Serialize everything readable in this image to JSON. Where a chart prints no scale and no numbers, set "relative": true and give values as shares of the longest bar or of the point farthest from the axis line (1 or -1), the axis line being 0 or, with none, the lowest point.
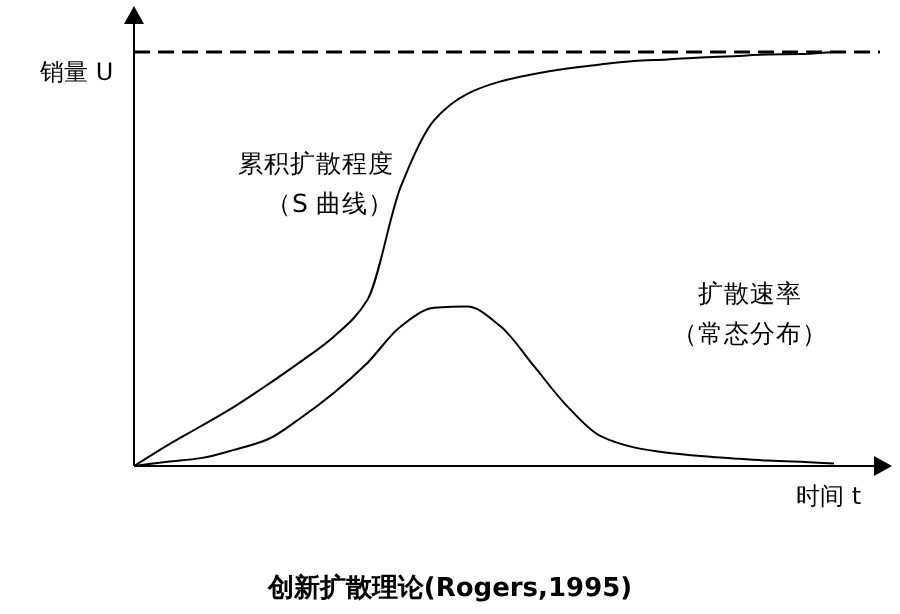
{
  "chart_data": {
    "type": "line",
    "relative": true,
    "title": "创新扩散理论(Rogers,1995)",
    "xlabel": "时间 t",
    "ylabel": "销量 U",
    "annotations": [
      "累积扩散程度",
      "（S 曲线）",
      "扩散速率",
      "（常态分布）"
    ],
    "categories": [
      null,
      null,
      null,
      null,
      null,
      null,
      null,
      null,
      null,
      null,
      null,
      null,
      null,
      null,
      null,
      null,
      null,
      null,
      null,
      null,
      null,
      null
    ],
    "series": [
      {
        "color": "#000000",
        "values": [
          0,
          0.05,
          0.096,
          0.143,
          0.196,
          0.252,
          0.313,
          0.401,
          0.674,
          0.835,
          0.899,
          0.929,
          0.947,
          0.96,
          0.97,
          0.978,
          0.982,
          0.987,
          0.99,
          0.994,
          0.995,
          1
        ]
      },
      {
        "color": "#000000",
        "values": [
          0,
          0.01,
          0.019,
          0.039,
          0.064,
          0.116,
          0.177,
          0.249,
          0.337,
          0.382,
          0.385,
          0.337,
          0.241,
          0.144,
          0.072,
          0.045,
          0.032,
          0.024,
          0.018,
          0.013,
          0.01,
          0.006
        ]
      }
    ],
    "ref_lines": [
      {
        "axis": "y",
        "value": 1,
        "color": "#000000",
        "line_style": "dashed"
      }
    ],
    "grid": false,
    "marker": "none",
    "line_style": "solid"
  }
}
